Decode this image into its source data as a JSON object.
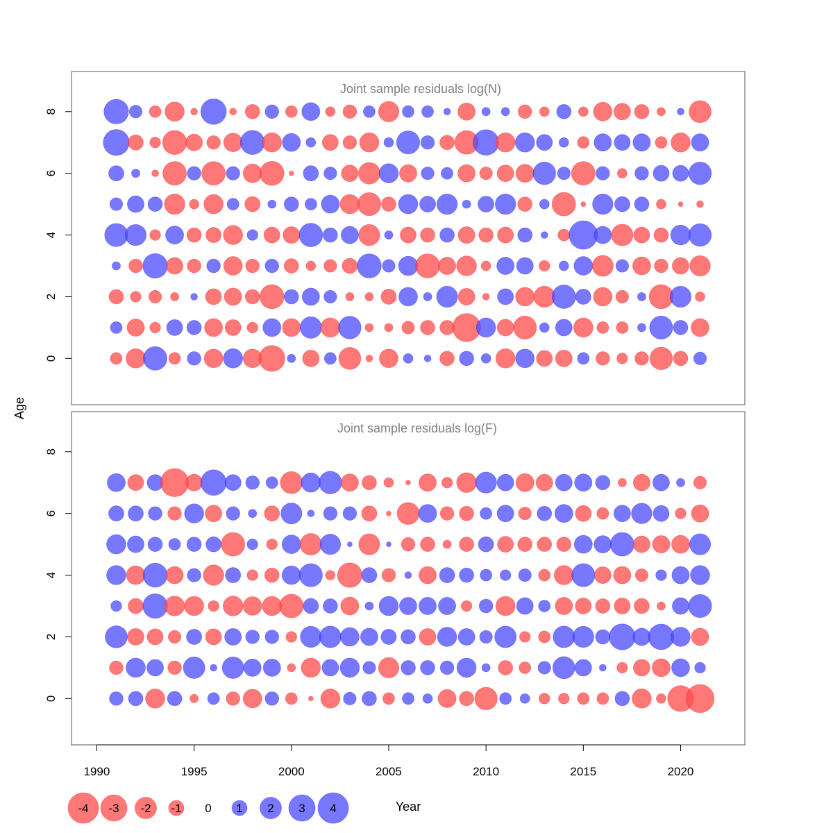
{
  "chart_data": {
    "type": "scatter",
    "subtype": "bubble",
    "xlabel": "Year",
    "ylabel": "Age",
    "x_ticks": [
      1990,
      1995,
      2000,
      2005,
      2010,
      2015,
      2020
    ],
    "y_ticks": [
      0,
      2,
      4,
      6,
      8
    ],
    "xlim": [
      1988.7,
      2023.3
    ],
    "ylim": [
      -1.5,
      9.3
    ],
    "colors": {
      "positive": "#4b4bff",
      "negative": "#ff4b4b",
      "zero": "#000000"
    },
    "legend": {
      "values": [
        -4,
        -3,
        -2,
        -1,
        0,
        1,
        2,
        3,
        4
      ],
      "labels": [
        "-4",
        "-3",
        "-2",
        "-1",
        "0",
        "1",
        "2",
        "3",
        "4"
      ]
    },
    "years": [
      1991,
      1992,
      1993,
      1994,
      1995,
      1996,
      1997,
      1998,
      1999,
      2000,
      2001,
      2002,
      2003,
      2004,
      2005,
      2006,
      2007,
      2008,
      2009,
      2010,
      2011,
      2012,
      2013,
      2014,
      2015,
      2016,
      2017,
      2018,
      2019,
      2020,
      2021
    ],
    "panels": [
      {
        "title": "Joint sample residuals log(N)",
        "ages": [
          0,
          1,
          2,
          3,
          4,
          5,
          6,
          7,
          8
        ],
        "residuals": {
          "0": [
            -0.6,
            -1.6,
            2.4,
            -0.6,
            0.8,
            -1.5,
            1.6,
            -1.5,
            -2.9,
            0.3,
            -1.2,
            0.6,
            -2.1,
            -0.2,
            -1.5,
            0.4,
            0.2,
            -0.9,
            0.9,
            0.4,
            -1.6,
            1.5,
            -1.1,
            -1.2,
            0.6,
            -0.8,
            -0.5,
            -0.8,
            -2.2,
            -0.9,
            0.7
          ],
          "1": [
            0.6,
            -1.3,
            -0.5,
            1.1,
            0.9,
            -1.4,
            -1.1,
            -0.5,
            1.4,
            -1.4,
            2.0,
            -1.6,
            2.2,
            -0.3,
            -0.3,
            -0.7,
            -0.9,
            -0.9,
            -3.4,
            1.6,
            -1.2,
            -2.3,
            0.4,
            1.2,
            -1.6,
            -0.6,
            -0.6,
            0.3,
            2.3,
            0.9,
            -1.4
          ],
          "2": [
            -0.9,
            -0.5,
            -0.7,
            -0.3,
            0.2,
            -1.1,
            -1.3,
            -0.9,
            -2.5,
            0.9,
            1.3,
            0.7,
            -0.3,
            -0.3,
            -1.0,
            1.5,
            0.3,
            1.9,
            -1.2,
            -0.2,
            1.1,
            -1.5,
            -1.9,
            2.4,
            1.0,
            -1.5,
            -0.7,
            0.3,
            -2.5,
            1.9,
            -0.4
          ],
          "3": [
            0.3,
            -0.8,
            2.6,
            -1.2,
            -0.8,
            0.8,
            -1.5,
            -0.8,
            0.8,
            -0.9,
            -0.4,
            -0.7,
            -1.0,
            2.5,
            0.7,
            1.6,
            -2.5,
            -1.3,
            -1.7,
            -0.4,
            1.3,
            1.2,
            -0.5,
            0.4,
            1.5,
            -1.9,
            0.7,
            -1.4,
            -0.8,
            -1.2,
            -1.8
          ],
          "4": [
            2.3,
            1.9,
            -0.5,
            1.4,
            -0.9,
            -1.0,
            -1.6,
            0.5,
            -1.1,
            -1.2,
            2.4,
            0.9,
            1.3,
            -1.9,
            0.3,
            -1.1,
            -0.9,
            0.9,
            -1.2,
            -0.9,
            -1.1,
            0.9,
            0.2,
            -0.6,
            3.5,
            1.3,
            -2.0,
            -1.1,
            -0.9,
            1.7,
            2.2
          ],
          "5": [
            0.7,
            1.2,
            0.9,
            -1.8,
            -0.4,
            -1.6,
            0.6,
            -1.0,
            0.3,
            0.9,
            0.6,
            1.4,
            -1.6,
            -2.3,
            -0.9,
            1.6,
            1.1,
            1.8,
            0.3,
            1.1,
            1.8,
            -0.9,
            0.4,
            -2.4,
            -0.1,
            1.8,
            1.0,
            0.9,
            -0.4,
            -0.1,
            -0.2
          ],
          "6": [
            1.0,
            0.3,
            -0.2,
            -2.4,
            0.8,
            -2.4,
            0.8,
            -1.5,
            -2.5,
            -0.1,
            1.0,
            0.7,
            -1.2,
            -2.0,
            1.6,
            -1.3,
            0.7,
            0.6,
            -1.3,
            -0.7,
            -1.2,
            -1.4,
            2.2,
            0.7,
            -2.4,
            0.8,
            -0.4,
            0.8,
            1.1,
            1.1,
            2.2
          ],
          "7": [
            2.9,
            -1.0,
            -0.5,
            -2.5,
            -1.2,
            -0.8,
            -1.5,
            2.5,
            -1.6,
            1.4,
            0.4,
            -1.1,
            -0.8,
            -1.6,
            0.4,
            2.3,
            0.8,
            -0.9,
            -2.4,
            2.8,
            -1.6,
            1.6,
            1.1,
            0.4,
            -0.6,
            1.3,
            1.1,
            1.3,
            -0.6,
            -1.6,
            1.3
          ],
          "8": [
            2.6,
            0.7,
            -0.6,
            -1.6,
            -0.2,
            2.8,
            -0.2,
            -0.9,
            0.8,
            -0.6,
            1.4,
            -0.4,
            -0.8,
            0.6,
            -1.8,
            0.6,
            0.6,
            0.2,
            -1.3,
            0.3,
            0.3,
            -0.8,
            -0.4,
            0.9,
            -0.4,
            -1.5,
            -1.2,
            -0.9,
            -0.3,
            0.2,
            -2.1
          ]
        }
      },
      {
        "title": "Joint sample residuals log(F)",
        "ages": [
          0,
          1,
          2,
          3,
          4,
          5,
          6,
          7
        ],
        "residuals": {
          "0": [
            0.8,
            0.9,
            -1.6,
            0.9,
            -0.3,
            0.6,
            -0.8,
            -1.5,
            0.8,
            -0.6,
            -0.1,
            -1.6,
            0.7,
            0.9,
            -0.6,
            0.6,
            0.4,
            -1.4,
            -0.9,
            -2.2,
            0.6,
            0.4,
            -0.5,
            -0.5,
            -0.6,
            -0.6,
            0.9,
            -1.6,
            -0.4,
            -2.9,
            -3.4
          ],
          "1": [
            -0.8,
            1.6,
            1.2,
            -0.8,
            2.0,
            0.2,
            2.0,
            1.3,
            1.3,
            -0.3,
            -1.6,
            1.2,
            1.6,
            0.7,
            -1.8,
            0.9,
            0.9,
            0.8,
            1.6,
            0.3,
            -0.9,
            -0.6,
            0.7,
            2.1,
            1.2,
            0.2,
            -0.5,
            -1.2,
            -1.4,
            1.4,
            0.5
          ],
          "2": [
            2.1,
            -1.2,
            -1.1,
            -0.7,
            1.0,
            -1.1,
            1.2,
            0.8,
            0.8,
            -0.5,
            1.9,
            2.0,
            1.5,
            1.3,
            1.0,
            0.9,
            -1.2,
            1.6,
            1.2,
            0.7,
            2.0,
            -0.5,
            -0.6,
            2.0,
            1.9,
            0.9,
            2.9,
            1.3,
            2.8,
            1.6,
            -1.3
          ],
          "3": [
            0.5,
            -1.0,
            2.6,
            -1.7,
            -1.6,
            -0.5,
            -1.7,
            -1.5,
            -1.6,
            -2.4,
            1.0,
            0.9,
            -1.4,
            0.3,
            1.6,
            1.3,
            1.3,
            1.3,
            -0.5,
            0.8,
            -1.6,
            1.2,
            0.6,
            -1.3,
            -1.1,
            -0.9,
            -1.1,
            -1.0,
            -0.3,
            1.2,
            2.3
          ],
          "4": [
            1.6,
            -1.5,
            2.5,
            -1.3,
            0.8,
            -1.8,
            1.0,
            -0.5,
            -0.9,
            1.5,
            2.3,
            -0.4,
            -2.6,
            1.0,
            -0.8,
            0.2,
            -1.3,
            1.0,
            0.9,
            0.6,
            0.5,
            0.7,
            -0.6,
            -1.6,
            2.3,
            -1.2,
            -1.3,
            -0.7,
            0.5,
            1.3,
            1.6
          ],
          "5": [
            1.6,
            1.2,
            0.9,
            0.6,
            0.9,
            1.0,
            -2.4,
            0.5,
            -0.5,
            1.5,
            -2.0,
            1.8,
            0.1,
            -1.9,
            0.1,
            -0.8,
            -0.9,
            -0.3,
            -0.9,
            1.0,
            -1.1,
            -0.9,
            -0.9,
            -0.9,
            1.4,
            1.3,
            2.4,
            -1.2,
            -1.3,
            -1.4,
            1.9
          ],
          "6": [
            1.0,
            1.0,
            0.8,
            -0.8,
            1.6,
            -1.2,
            0.8,
            0.3,
            -1.0,
            1.9,
            0.2,
            0.8,
            0.8,
            -1.0,
            -0.1,
            -2.1,
            1.4,
            -0.8,
            -0.9,
            0.6,
            1.2,
            -0.7,
            0.9,
            1.4,
            -1.1,
            -0.6,
            1.2,
            1.8,
            1.1,
            -0.5,
            -1.3
          ],
          "7": [
            1.4,
            -1.1,
            1.1,
            -3.4,
            -1.2,
            2.8,
            1.1,
            0.8,
            0.6,
            -2.1,
            1.6,
            2.2,
            -1.3,
            -0.9,
            -0.4,
            -0.1,
            -1.3,
            -0.5,
            -1.7,
            1.9,
            1.2,
            -1.4,
            -1.2,
            1.2,
            1.3,
            0.9,
            -0.3,
            -1.2,
            1.2,
            0.3,
            -0.7
          ]
        }
      }
    ]
  }
}
